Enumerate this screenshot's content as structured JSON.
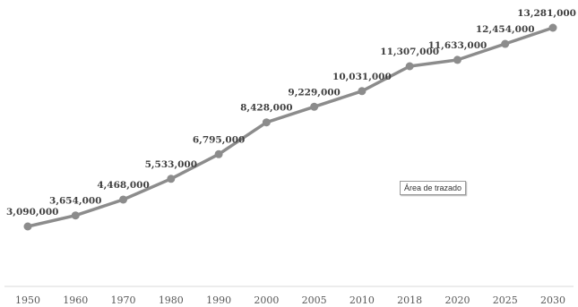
{
  "chart_data": {
    "type": "line",
    "title": "",
    "xlabel": "",
    "ylabel": "",
    "categories": [
      "1950",
      "1960",
      "1970",
      "1980",
      "1990",
      "2000",
      "2005",
      "2010",
      "2018",
      "2020",
      "2025",
      "2030"
    ],
    "series": [
      {
        "values": [
          3090000,
          3654000,
          4468000,
          5533000,
          6795000,
          8428000,
          9229000,
          10031000,
          11307000,
          11633000,
          12454000,
          13281000
        ],
        "labels": [
          "3,090,000",
          "3,654,000",
          "4,468,000",
          "5,533,000",
          "6,795,000",
          "8,428,000",
          "9,229,000",
          "10,031,000",
          "11,307,000",
          "11,633,000",
          "12,454,000",
          "13,281,000"
        ]
      }
    ],
    "grid": false,
    "legend": "none"
  },
  "colors": {
    "line": "#8c8c8c",
    "marker": "#8c8c8c",
    "axis": "#d9d9d9"
  },
  "tooltip": {
    "text": "Área de trazado"
  }
}
